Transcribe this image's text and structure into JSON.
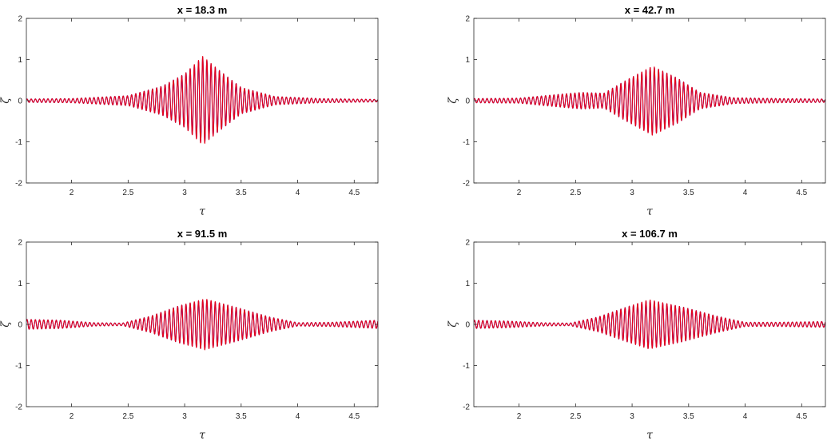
{
  "colors": {
    "series_blue": "#0b0bd6",
    "series_red": "#e6001a",
    "axes": "#262626"
  },
  "chart_data": [
    {
      "type": "line",
      "title": "x = 18.3 m",
      "xlabel": "τ",
      "ylabel": "ζ",
      "xlim": [
        1.6,
        4.71
      ],
      "ylim": [
        -2,
        2
      ],
      "xticks": [
        2,
        2.5,
        3,
        3.5,
        4,
        4.5
      ],
      "yticks": [
        -2,
        -1,
        0,
        1,
        2
      ],
      "grid": false,
      "series": [
        {
          "color": "#0b0bd6",
          "x": [
            1.6,
            2.0,
            2.5,
            2.8,
            3.0,
            3.16,
            3.3,
            3.5,
            3.8,
            4.2,
            4.71
          ],
          "envelope": [
            0.04,
            0.05,
            0.12,
            0.35,
            0.65,
            1.05,
            0.75,
            0.32,
            0.1,
            0.05,
            0.03
          ]
        },
        {
          "color": "#e6001a",
          "x": [
            1.6,
            2.0,
            2.5,
            2.8,
            3.0,
            3.16,
            3.3,
            3.5,
            3.8,
            4.2,
            4.71
          ],
          "envelope": [
            0.04,
            0.05,
            0.12,
            0.35,
            0.65,
            1.08,
            0.75,
            0.32,
            0.1,
            0.05,
            0.03
          ]
        }
      ]
    },
    {
      "type": "line",
      "title": "x = 42.7 m",
      "xlabel": "τ",
      "ylabel": "ζ",
      "xlim": [
        1.6,
        4.71
      ],
      "ylim": [
        -2,
        2
      ],
      "xticks": [
        2,
        2.5,
        3,
        3.5,
        4,
        4.5
      ],
      "yticks": [
        -2,
        -1,
        0,
        1,
        2
      ],
      "grid": false,
      "series": [
        {
          "color": "#0b0bd6",
          "x": [
            1.6,
            2.0,
            2.3,
            2.55,
            2.75,
            2.95,
            3.18,
            3.4,
            3.6,
            3.9,
            4.3,
            4.71
          ],
          "envelope": [
            0.05,
            0.06,
            0.14,
            0.2,
            0.18,
            0.5,
            0.82,
            0.55,
            0.2,
            0.07,
            0.05,
            0.04
          ]
        },
        {
          "color": "#e6001a",
          "x": [
            1.6,
            2.0,
            2.3,
            2.55,
            2.75,
            2.95,
            3.18,
            3.4,
            3.6,
            3.9,
            4.3,
            4.71
          ],
          "envelope": [
            0.05,
            0.06,
            0.14,
            0.2,
            0.18,
            0.5,
            0.84,
            0.55,
            0.2,
            0.07,
            0.05,
            0.04
          ]
        }
      ]
    },
    {
      "type": "line",
      "title": "x = 91.5 m",
      "xlabel": "τ",
      "ylabel": "ζ",
      "xlim": [
        1.6,
        4.71
      ],
      "ylim": [
        -2,
        2
      ],
      "xticks": [
        2,
        2.5,
        3,
        3.5,
        4,
        4.5
      ],
      "yticks": [
        -2,
        -1,
        0,
        1,
        2
      ],
      "grid": false,
      "series": [
        {
          "color": "#0b0bd6",
          "x": [
            1.6,
            1.9,
            2.2,
            2.45,
            2.7,
            2.95,
            3.18,
            3.45,
            3.75,
            4.0,
            4.3,
            4.71
          ],
          "envelope": [
            0.12,
            0.1,
            0.04,
            0.03,
            0.2,
            0.45,
            0.6,
            0.42,
            0.18,
            0.04,
            0.05,
            0.1
          ]
        },
        {
          "color": "#e6001a",
          "x": [
            1.6,
            1.9,
            2.2,
            2.45,
            2.7,
            2.95,
            3.18,
            3.45,
            3.75,
            4.0,
            4.3,
            4.71
          ],
          "envelope": [
            0.12,
            0.1,
            0.04,
            0.03,
            0.2,
            0.45,
            0.62,
            0.42,
            0.18,
            0.04,
            0.05,
            0.1
          ]
        }
      ]
    },
    {
      "type": "line",
      "title": "x = 106.7 m",
      "xlabel": "τ",
      "ylabel": "ζ",
      "xlim": [
        1.6,
        4.71
      ],
      "ylim": [
        -2,
        2
      ],
      "xticks": [
        2,
        2.5,
        3,
        3.5,
        4,
        4.5
      ],
      "yticks": [
        -2,
        -1,
        0,
        1,
        2
      ],
      "grid": false,
      "series": [
        {
          "color": "#0b0bd6",
          "x": [
            1.6,
            1.9,
            2.2,
            2.45,
            2.7,
            2.95,
            3.15,
            3.45,
            3.75,
            4.0,
            4.3,
            4.71
          ],
          "envelope": [
            0.1,
            0.08,
            0.04,
            0.03,
            0.18,
            0.42,
            0.58,
            0.42,
            0.2,
            0.05,
            0.05,
            0.07
          ]
        },
        {
          "color": "#e6001a",
          "x": [
            1.6,
            1.9,
            2.2,
            2.45,
            2.7,
            2.95,
            3.15,
            3.45,
            3.75,
            4.0,
            4.3,
            4.71
          ],
          "envelope": [
            0.1,
            0.08,
            0.04,
            0.03,
            0.18,
            0.42,
            0.6,
            0.42,
            0.2,
            0.05,
            0.05,
            0.07
          ]
        }
      ]
    }
  ]
}
